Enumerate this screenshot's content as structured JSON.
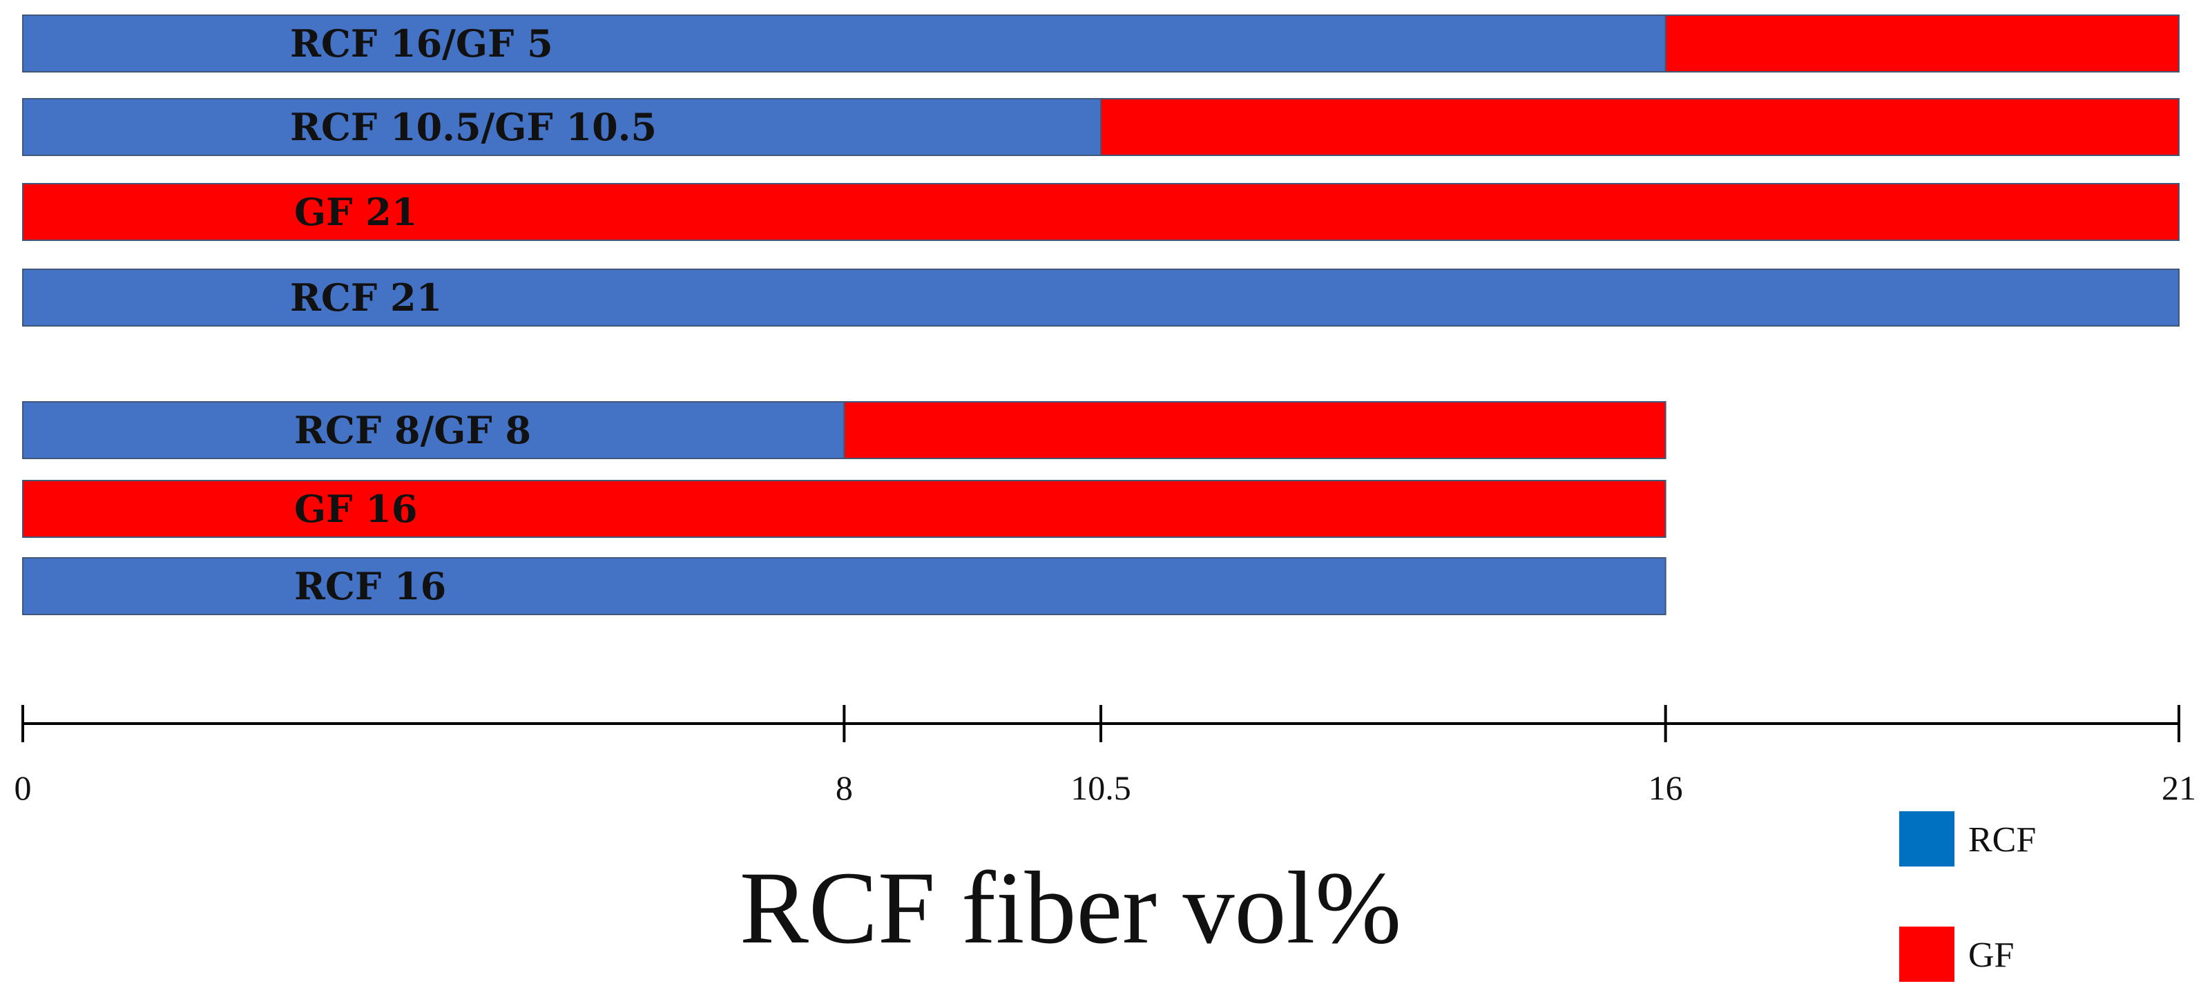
{
  "chart_data": {
    "type": "bar",
    "orientation": "horizontal",
    "stacked": true,
    "title": "",
    "xlabel": "RCF fiber vol%",
    "ylabel": "",
    "xlim": [
      0,
      21
    ],
    "x_ticks": [
      0,
      8,
      10.5,
      16,
      21
    ],
    "x_tick_labels": [
      "0",
      "8",
      "10.5",
      "16",
      "21"
    ],
    "grid": false,
    "legend_position": "bottom-right",
    "series": [
      {
        "name": "RCF",
        "color": "#4472C4",
        "legend_color": "#0070C0"
      },
      {
        "name": "GF",
        "color": "#FF0000",
        "legend_color": "#FF0000"
      }
    ],
    "bars": [
      {
        "label": "RCF 16/GF 5",
        "group": "top",
        "segments": [
          {
            "series": "RCF",
            "value": 16
          },
          {
            "series": "GF",
            "value": 5
          }
        ]
      },
      {
        "label": "RCF 10.5/GF 10.5",
        "group": "top",
        "segments": [
          {
            "series": "RCF",
            "value": 10.5
          },
          {
            "series": "GF",
            "value": 10.5
          }
        ]
      },
      {
        "label": "GF 21",
        "group": "top",
        "segments": [
          {
            "series": "GF",
            "value": 21
          }
        ]
      },
      {
        "label": "RCF 21",
        "group": "top",
        "segments": [
          {
            "series": "RCF",
            "value": 21
          }
        ]
      },
      {
        "label": "RCF 8/GF 8",
        "group": "bottom",
        "segments": [
          {
            "series": "RCF",
            "value": 8
          },
          {
            "series": "GF",
            "value": 8
          }
        ]
      },
      {
        "label": "GF 16",
        "group": "bottom",
        "segments": [
          {
            "series": "GF",
            "value": 16
          }
        ]
      },
      {
        "label": "RCF 16",
        "group": "bottom",
        "segments": [
          {
            "series": "RCF",
            "value": 16
          }
        ]
      }
    ]
  }
}
